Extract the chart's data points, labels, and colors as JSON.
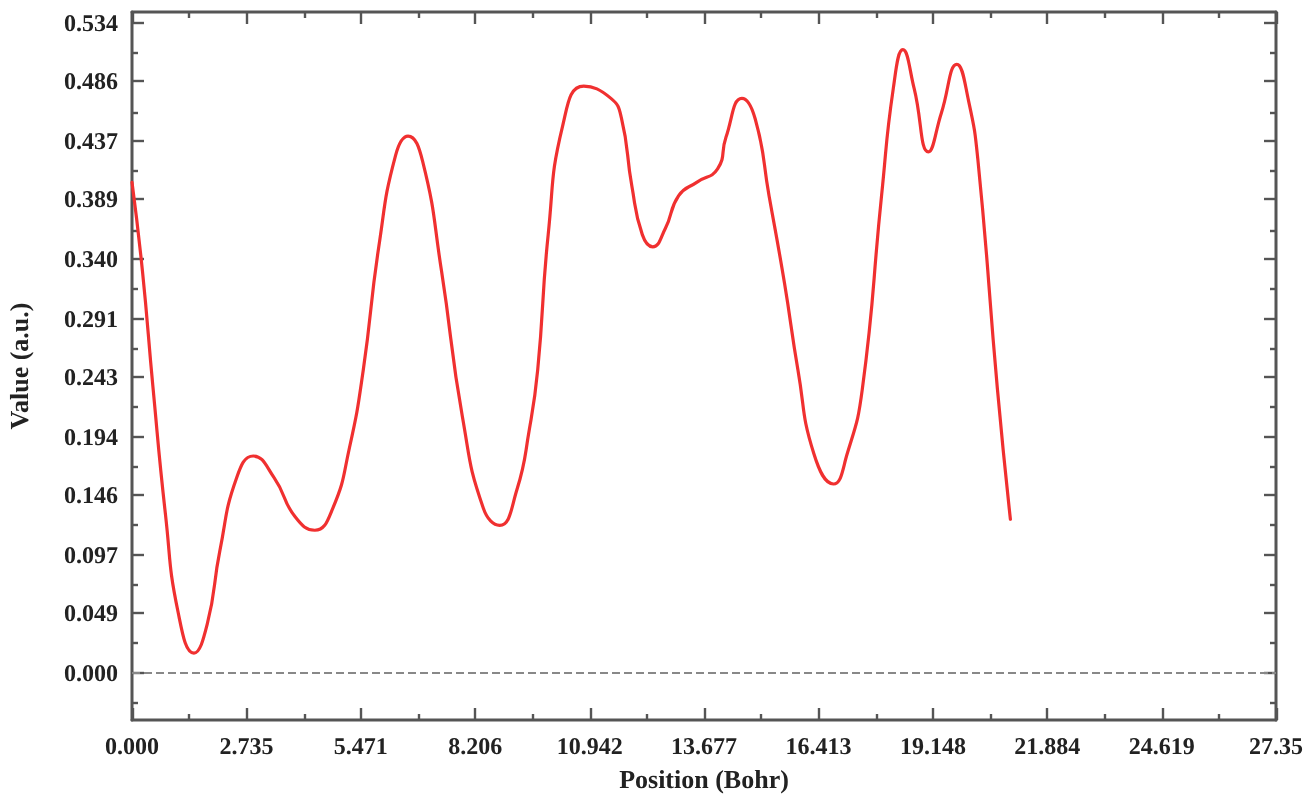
{
  "chart_data": {
    "type": "line",
    "xlabel": "Position (Bohr)",
    "ylabel": "Value (a.u.)",
    "x": [
      0,
      0.25,
      0.5,
      0.8,
      1.1,
      1.48,
      1.8,
      2.1,
      2.5,
      2.9,
      3.4,
      3.9,
      4.37,
      4.8,
      5.2,
      5.53,
      5.9,
      6.3,
      6.6,
      6.95,
      7.4,
      7.9,
      8.4,
      8.79,
      9.2,
      9.5,
      9.7,
      9.95,
      10.3,
      10.8,
      11.45,
      11.7,
      11.95,
      12.2,
      12.45,
      12.75,
      13.07,
      13.5,
      14.0,
      14.2,
      14.58,
      14.9,
      15.23,
      15.6,
      15.92,
      16.3,
      16.77,
      17.1,
      17.46,
      17.92,
      18.2,
      18.43,
      18.7,
      19.04,
      19.35,
      19.72,
      20.0,
      20.23,
      20.69,
      21.0
    ],
    "values": [
      0.403,
      0.33,
      0.235,
      0.13,
      0.05,
      0.016,
      0.04,
      0.1,
      0.16,
      0.178,
      0.16,
      0.128,
      0.117,
      0.135,
      0.185,
      0.249,
      0.35,
      0.425,
      0.441,
      0.42,
      0.33,
      0.21,
      0.135,
      0.121,
      0.15,
      0.2,
      0.249,
      0.36,
      0.45,
      0.482,
      0.472,
      0.456,
      0.4,
      0.36,
      0.35,
      0.365,
      0.392,
      0.403,
      0.414,
      0.44,
      0.472,
      0.455,
      0.392,
      0.32,
      0.249,
      0.18,
      0.155,
      0.18,
      0.233,
      0.392,
      0.48,
      0.512,
      0.48,
      0.428,
      0.46,
      0.5,
      0.47,
      0.419,
      0.233,
      0.126
    ],
    "color": "#f03030",
    "marker": "none",
    "line_style": "solid",
    "grid": false,
    "xlim": [
      0,
      27.35
    ],
    "ylim": [
      -0.039,
      0.543
    ],
    "xticks": [
      {
        "value": 0,
        "label": "0.000"
      },
      2.735,
      5.471,
      8.206,
      10.942,
      13.677,
      16.413,
      19.148,
      21.884,
      24.619,
      27.35,
      {
        "value": 1.368,
        "label": null
      },
      {
        "value": 4.103,
        "label": null
      },
      {
        "value": 6.838,
        "label": null
      },
      {
        "value": 9.574,
        "label": null
      },
      {
        "value": 12.31,
        "label": null
      },
      {
        "value": 15.045,
        "label": null
      },
      {
        "value": 17.78,
        "label": null
      },
      {
        "value": 20.516,
        "label": null
      },
      {
        "value": 23.251,
        "label": null
      },
      {
        "value": 25.985,
        "label": null
      }
    ],
    "yticks": [
      {
        "value": 0,
        "label": "0.000"
      },
      0.049,
      0.097,
      0.146,
      0.194,
      0.243,
      0.291,
      {
        "value": 0.34,
        "label": "0.340"
      },
      0.389,
      0.437,
      0.486,
      0.534,
      {
        "value": -0.024,
        "label": null
      },
      {
        "value": 0.024,
        "label": null
      },
      {
        "value": 0.073,
        "label": null
      },
      {
        "value": 0.121,
        "label": null
      },
      {
        "value": 0.17,
        "label": null
      },
      {
        "value": 0.218,
        "label": null
      },
      {
        "value": 0.267,
        "label": null
      },
      {
        "value": 0.316,
        "label": null
      },
      {
        "value": 0.364,
        "label": null
      },
      {
        "value": 0.413,
        "label": null
      },
      {
        "value": 0.461,
        "label": null
      },
      {
        "value": 0.51,
        "label": null
      }
    ],
    "ref_lines": [
      {
        "axis": "y",
        "value": 0,
        "color": "#888888",
        "line_style": "dashed"
      }
    ]
  }
}
